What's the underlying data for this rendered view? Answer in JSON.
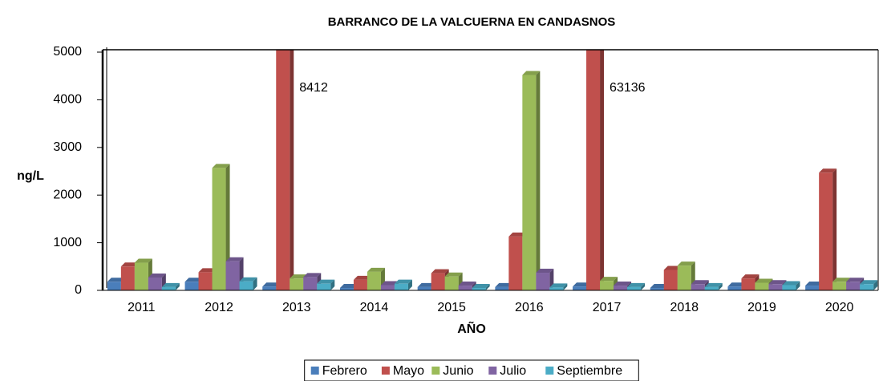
{
  "chart_data": {
    "type": "bar3d",
    "title": "BARRANCO DE LA VALCUERNA EN CANDASNOS",
    "x_label": "AÑO",
    "y_label": "ng/L",
    "categories": [
      "2011",
      "2012",
      "2013",
      "2014",
      "2015",
      "2016",
      "2017",
      "2018",
      "2019",
      "2020"
    ],
    "series": [
      {
        "name": "Febrero",
        "color": "#4a7ebb",
        "values": [
          180,
          180,
          80,
          50,
          70,
          70,
          80,
          50,
          80,
          100
        ]
      },
      {
        "name": "Mayo",
        "color": "#c0504d",
        "values": [
          500,
          380,
          8412,
          220,
          360,
          1130,
          63136,
          430,
          250,
          2470
        ]
      },
      {
        "name": "Junio",
        "color": "#9bbb59",
        "values": [
          580,
          2570,
          250,
          390,
          290,
          4520,
          200,
          520,
          160,
          180
        ]
      },
      {
        "name": "Julio",
        "color": "#8064a2",
        "values": [
          270,
          610,
          280,
          110,
          100,
          370,
          100,
          130,
          130,
          180
        ]
      },
      {
        "name": "Septiembre",
        "color": "#4bacc6",
        "values": [
          70,
          190,
          140,
          140,
          50,
          60,
          70,
          70,
          110,
          130
        ]
      }
    ],
    "ylim": [
      0,
      5000
    ],
    "yticks": [
      0,
      1000,
      2000,
      3000,
      4000,
      5000
    ],
    "legend": "bottom"
  }
}
